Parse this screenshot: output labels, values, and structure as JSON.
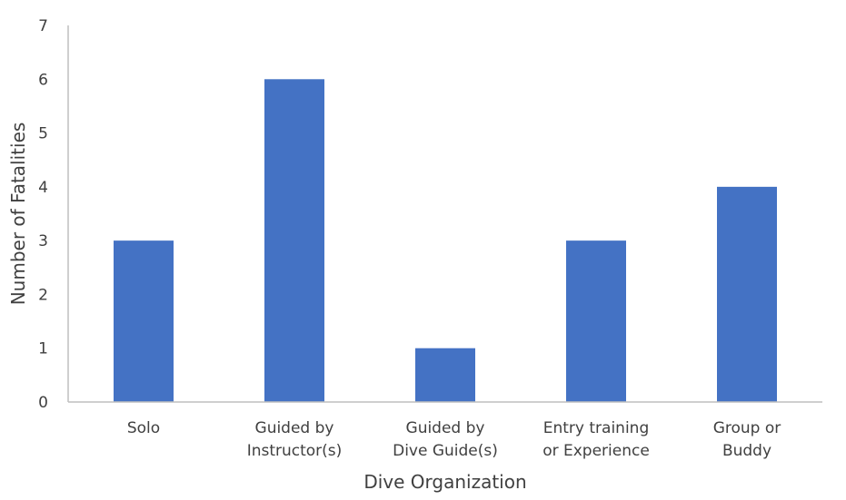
{
  "chart_data": {
    "type": "bar",
    "categories": [
      [
        "Solo"
      ],
      [
        "Guided by",
        "Instructor(s)"
      ],
      [
        "Guided by",
        "Dive Guide(s)"
      ],
      [
        "Entry training",
        "or Experience"
      ],
      [
        "Group or",
        "Buddy"
      ]
    ],
    "values": [
      3,
      6,
      1,
      3,
      4
    ],
    "title": "",
    "xlabel": "Dive Organization",
    "ylabel": "Number of Fatalities",
    "ylim": [
      0,
      7
    ],
    "yticks": [
      0,
      1,
      2,
      3,
      4,
      5,
      6,
      7
    ],
    "grid": false,
    "legend": "none",
    "bar_color": "#4472C4",
    "axis_color": "#BFBFBF"
  }
}
